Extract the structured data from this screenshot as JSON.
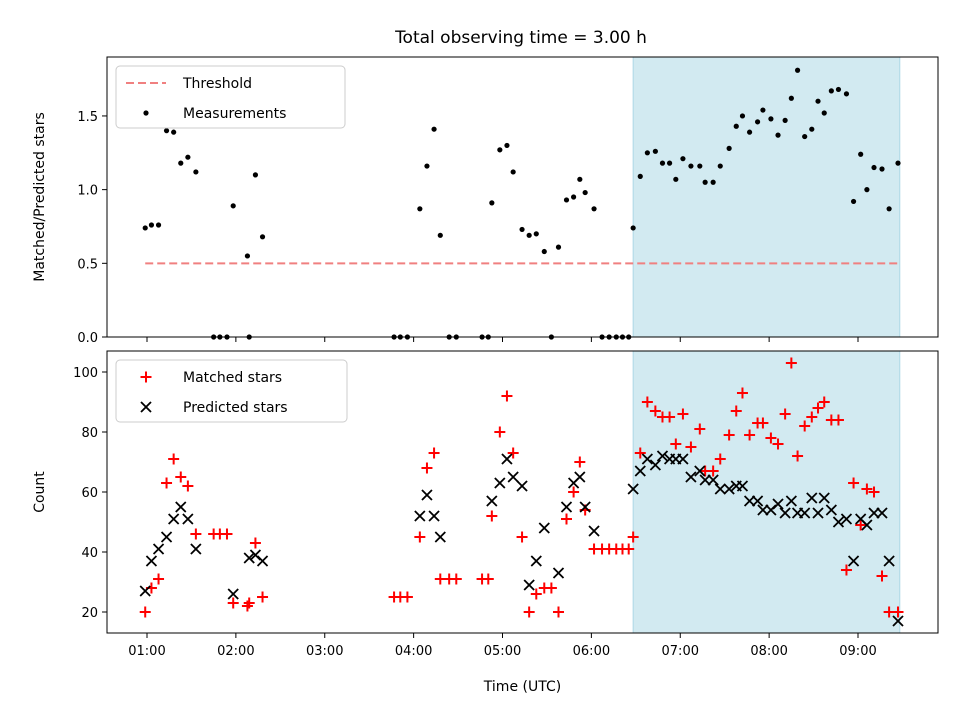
{
  "figure": {
    "title": "Total observing time = 3.00 h"
  },
  "chart_data": [
    {
      "type": "scatter",
      "ylabel": "Matched/Predicted stars",
      "xlabel": "",
      "x_unit": "hours UTC",
      "xlim": [
        0.55,
        9.9
      ],
      "ylim": [
        0,
        1.9
      ],
      "yticks": [
        "0.0",
        "0.5",
        "1.0",
        "1.5"
      ],
      "ytick_values": [
        0,
        0.5,
        1.0,
        1.5
      ],
      "xtick_values": [
        1,
        2,
        3,
        4,
        5,
        6,
        7,
        8,
        9
      ],
      "shaded_region": {
        "x_start": 6.47,
        "x_end": 9.47,
        "color": "#add8e6"
      },
      "legend": {
        "location": "upper left",
        "entries": [
          "Threshold",
          "Measurements"
        ]
      },
      "threshold": {
        "name": "Threshold",
        "value": 0.5,
        "x_start": 0.98,
        "x_end": 9.47,
        "color": "#f08080",
        "style": "dashed"
      },
      "series": [
        {
          "name": "Measurements",
          "color": "#000000",
          "marker": "dot",
          "points": [
            [
              0.98,
              0.74
            ],
            [
              1.05,
              0.76
            ],
            [
              1.13,
              0.76
            ],
            [
              1.22,
              1.4
            ],
            [
              1.3,
              1.39
            ],
            [
              1.38,
              1.18
            ],
            [
              1.46,
              1.22
            ],
            [
              1.55,
              1.12
            ],
            [
              1.75,
              0.0
            ],
            [
              1.82,
              0.0
            ],
            [
              1.9,
              0.0
            ],
            [
              1.97,
              0.89
            ],
            [
              2.13,
              0.55
            ],
            [
              2.15,
              0.0
            ],
            [
              2.22,
              1.1
            ],
            [
              2.3,
              0.68
            ],
            [
              3.78,
              0.0
            ],
            [
              3.85,
              0.0
            ],
            [
              3.93,
              0.0
            ],
            [
              4.07,
              0.87
            ],
            [
              4.15,
              1.16
            ],
            [
              4.23,
              1.41
            ],
            [
              4.3,
              0.69
            ],
            [
              4.4,
              0.0
            ],
            [
              4.48,
              0.0
            ],
            [
              4.77,
              0.0
            ],
            [
              4.84,
              0.0
            ],
            [
              4.88,
              0.91
            ],
            [
              4.97,
              1.27
            ],
            [
              5.05,
              1.3
            ],
            [
              5.12,
              1.12
            ],
            [
              5.22,
              0.73
            ],
            [
              5.3,
              0.69
            ],
            [
              5.38,
              0.7
            ],
            [
              5.47,
              0.58
            ],
            [
              5.55,
              0.0
            ],
            [
              5.63,
              0.61
            ],
            [
              5.72,
              0.93
            ],
            [
              5.8,
              0.95
            ],
            [
              5.87,
              1.07
            ],
            [
              5.93,
              0.98
            ],
            [
              6.03,
              0.87
            ],
            [
              6.12,
              0.0
            ],
            [
              6.2,
              0.0
            ],
            [
              6.28,
              0.0
            ],
            [
              6.35,
              0.0
            ],
            [
              6.42,
              0.0
            ],
            [
              6.47,
              0.74
            ],
            [
              6.55,
              1.09
            ],
            [
              6.63,
              1.25
            ],
            [
              6.72,
              1.26
            ],
            [
              6.8,
              1.18
            ],
            [
              6.88,
              1.18
            ],
            [
              6.95,
              1.07
            ],
            [
              7.03,
              1.21
            ],
            [
              7.12,
              1.16
            ],
            [
              7.22,
              1.16
            ],
            [
              7.28,
              1.05
            ],
            [
              7.37,
              1.05
            ],
            [
              7.45,
              1.16
            ],
            [
              7.55,
              1.28
            ],
            [
              7.63,
              1.43
            ],
            [
              7.7,
              1.5
            ],
            [
              7.78,
              1.39
            ],
            [
              7.87,
              1.46
            ],
            [
              7.93,
              1.54
            ],
            [
              8.02,
              1.48
            ],
            [
              8.1,
              1.37
            ],
            [
              8.18,
              1.47
            ],
            [
              8.25,
              1.62
            ],
            [
              8.32,
              1.81
            ],
            [
              8.4,
              1.36
            ],
            [
              8.48,
              1.41
            ],
            [
              8.55,
              1.6
            ],
            [
              8.62,
              1.52
            ],
            [
              8.7,
              1.67
            ],
            [
              8.78,
              1.68
            ],
            [
              8.87,
              1.65
            ],
            [
              8.95,
              0.92
            ],
            [
              9.03,
              1.24
            ],
            [
              9.1,
              1.0
            ],
            [
              9.18,
              1.15
            ],
            [
              9.27,
              1.14
            ],
            [
              9.35,
              0.87
            ],
            [
              9.45,
              1.18
            ]
          ]
        }
      ]
    },
    {
      "type": "scatter",
      "ylabel": "Count",
      "xlabel": "Time (UTC)",
      "x_unit": "hours UTC",
      "xlim": [
        0.55,
        9.9
      ],
      "ylim": [
        13,
        107
      ],
      "yticks": [
        "20",
        "40",
        "60",
        "80",
        "100"
      ],
      "ytick_values": [
        20,
        40,
        60,
        80,
        100
      ],
      "xticks": [
        "01:00",
        "02:00",
        "03:00",
        "04:00",
        "05:00",
        "06:00",
        "07:00",
        "08:00",
        "09:00"
      ],
      "xtick_values": [
        1,
        2,
        3,
        4,
        5,
        6,
        7,
        8,
        9
      ],
      "shaded_region": {
        "x_start": 6.47,
        "x_end": 9.47,
        "color": "#add8e6"
      },
      "legend": {
        "location": "upper left",
        "entries": [
          "Matched stars",
          "Predicted stars"
        ]
      },
      "series": [
        {
          "name": "Matched stars",
          "color": "#ff0000",
          "marker": "plus",
          "points": [
            [
              0.98,
              20
            ],
            [
              1.05,
              28
            ],
            [
              1.13,
              31
            ],
            [
              1.22,
              63
            ],
            [
              1.3,
              71
            ],
            [
              1.38,
              65
            ],
            [
              1.46,
              62
            ],
            [
              1.55,
              46
            ],
            [
              1.75,
              46
            ],
            [
              1.82,
              46
            ],
            [
              1.9,
              46
            ],
            [
              1.97,
              23
            ],
            [
              2.13,
              22
            ],
            [
              2.15,
              23
            ],
            [
              2.22,
              43
            ],
            [
              2.3,
              25
            ],
            [
              3.78,
              25
            ],
            [
              3.85,
              25
            ],
            [
              3.93,
              25
            ],
            [
              4.07,
              45
            ],
            [
              4.15,
              68
            ],
            [
              4.23,
              73
            ],
            [
              4.3,
              31
            ],
            [
              4.4,
              31
            ],
            [
              4.48,
              31
            ],
            [
              4.77,
              31
            ],
            [
              4.84,
              31
            ],
            [
              4.88,
              52
            ],
            [
              4.97,
              80
            ],
            [
              5.05,
              92
            ],
            [
              5.12,
              73
            ],
            [
              5.22,
              45
            ],
            [
              5.3,
              20
            ],
            [
              5.38,
              26
            ],
            [
              5.47,
              28
            ],
            [
              5.55,
              28
            ],
            [
              5.63,
              20
            ],
            [
              5.72,
              51
            ],
            [
              5.8,
              60
            ],
            [
              5.87,
              70
            ],
            [
              5.93,
              54
            ],
            [
              6.03,
              41
            ],
            [
              6.12,
              41
            ],
            [
              6.2,
              41
            ],
            [
              6.28,
              41
            ],
            [
              6.35,
              41
            ],
            [
              6.42,
              41
            ],
            [
              6.47,
              45
            ],
            [
              6.55,
              73
            ],
            [
              6.63,
              90
            ],
            [
              6.72,
              87
            ],
            [
              6.8,
              85
            ],
            [
              6.88,
              85
            ],
            [
              6.95,
              76
            ],
            [
              7.03,
              86
            ],
            [
              7.12,
              75
            ],
            [
              7.22,
              81
            ],
            [
              7.28,
              67
            ],
            [
              7.37,
              67
            ],
            [
              7.45,
              71
            ],
            [
              7.55,
              79
            ],
            [
              7.63,
              87
            ],
            [
              7.7,
              93
            ],
            [
              7.78,
              79
            ],
            [
              7.87,
              83
            ],
            [
              7.93,
              83
            ],
            [
              8.02,
              78
            ],
            [
              8.1,
              76
            ],
            [
              8.18,
              86
            ],
            [
              8.25,
              103
            ],
            [
              8.32,
              72
            ],
            [
              8.4,
              82
            ],
            [
              8.48,
              85
            ],
            [
              8.55,
              88
            ],
            [
              8.62,
              90
            ],
            [
              8.7,
              84
            ],
            [
              8.78,
              84
            ],
            [
              8.87,
              34
            ],
            [
              8.95,
              63
            ],
            [
              9.03,
              49
            ],
            [
              9.1,
              61
            ],
            [
              9.18,
              60
            ],
            [
              9.27,
              32
            ],
            [
              9.35,
              20
            ],
            [
              9.45,
              20
            ]
          ]
        },
        {
          "name": "Predicted stars",
          "color": "#000000",
          "marker": "x",
          "points": [
            [
              0.98,
              27
            ],
            [
              1.05,
              37
            ],
            [
              1.13,
              41
            ],
            [
              1.22,
              45
            ],
            [
              1.3,
              51
            ],
            [
              1.38,
              55
            ],
            [
              1.46,
              51
            ],
            [
              1.55,
              41
            ],
            [
              1.97,
              26
            ],
            [
              2.15,
              38
            ],
            [
              2.22,
              39
            ],
            [
              2.3,
              37
            ],
            [
              4.07,
              52
            ],
            [
              4.15,
              59
            ],
            [
              4.23,
              52
            ],
            [
              4.3,
              45
            ],
            [
              4.88,
              57
            ],
            [
              4.97,
              63
            ],
            [
              5.05,
              71
            ],
            [
              5.12,
              65
            ],
            [
              5.22,
              62
            ],
            [
              5.3,
              29
            ],
            [
              5.38,
              37
            ],
            [
              5.47,
              48
            ],
            [
              5.63,
              33
            ],
            [
              5.72,
              55
            ],
            [
              5.8,
              63
            ],
            [
              5.87,
              65
            ],
            [
              5.93,
              55
            ],
            [
              6.03,
              47
            ],
            [
              6.47,
              61
            ],
            [
              6.55,
              67
            ],
            [
              6.63,
              71
            ],
            [
              6.72,
              69
            ],
            [
              6.8,
              72
            ],
            [
              6.88,
              71
            ],
            [
              6.95,
              71
            ],
            [
              7.03,
              71
            ],
            [
              7.12,
              65
            ],
            [
              7.22,
              67
            ],
            [
              7.28,
              64
            ],
            [
              7.37,
              64
            ],
            [
              7.45,
              61
            ],
            [
              7.55,
              61
            ],
            [
              7.63,
              62
            ],
            [
              7.7,
              62
            ],
            [
              7.78,
              57
            ],
            [
              7.87,
              57
            ],
            [
              7.93,
              54
            ],
            [
              8.02,
              54
            ],
            [
              8.1,
              56
            ],
            [
              8.18,
              53
            ],
            [
              8.25,
              57
            ],
            [
              8.32,
              53
            ],
            [
              8.4,
              53
            ],
            [
              8.48,
              58
            ],
            [
              8.55,
              53
            ],
            [
              8.62,
              58
            ],
            [
              8.7,
              54
            ],
            [
              8.78,
              50
            ],
            [
              8.87,
              51
            ],
            [
              8.95,
              37
            ],
            [
              9.03,
              51
            ],
            [
              9.1,
              49
            ],
            [
              9.18,
              53
            ],
            [
              9.27,
              53
            ],
            [
              9.35,
              37
            ],
            [
              9.45,
              17
            ]
          ]
        }
      ]
    }
  ]
}
